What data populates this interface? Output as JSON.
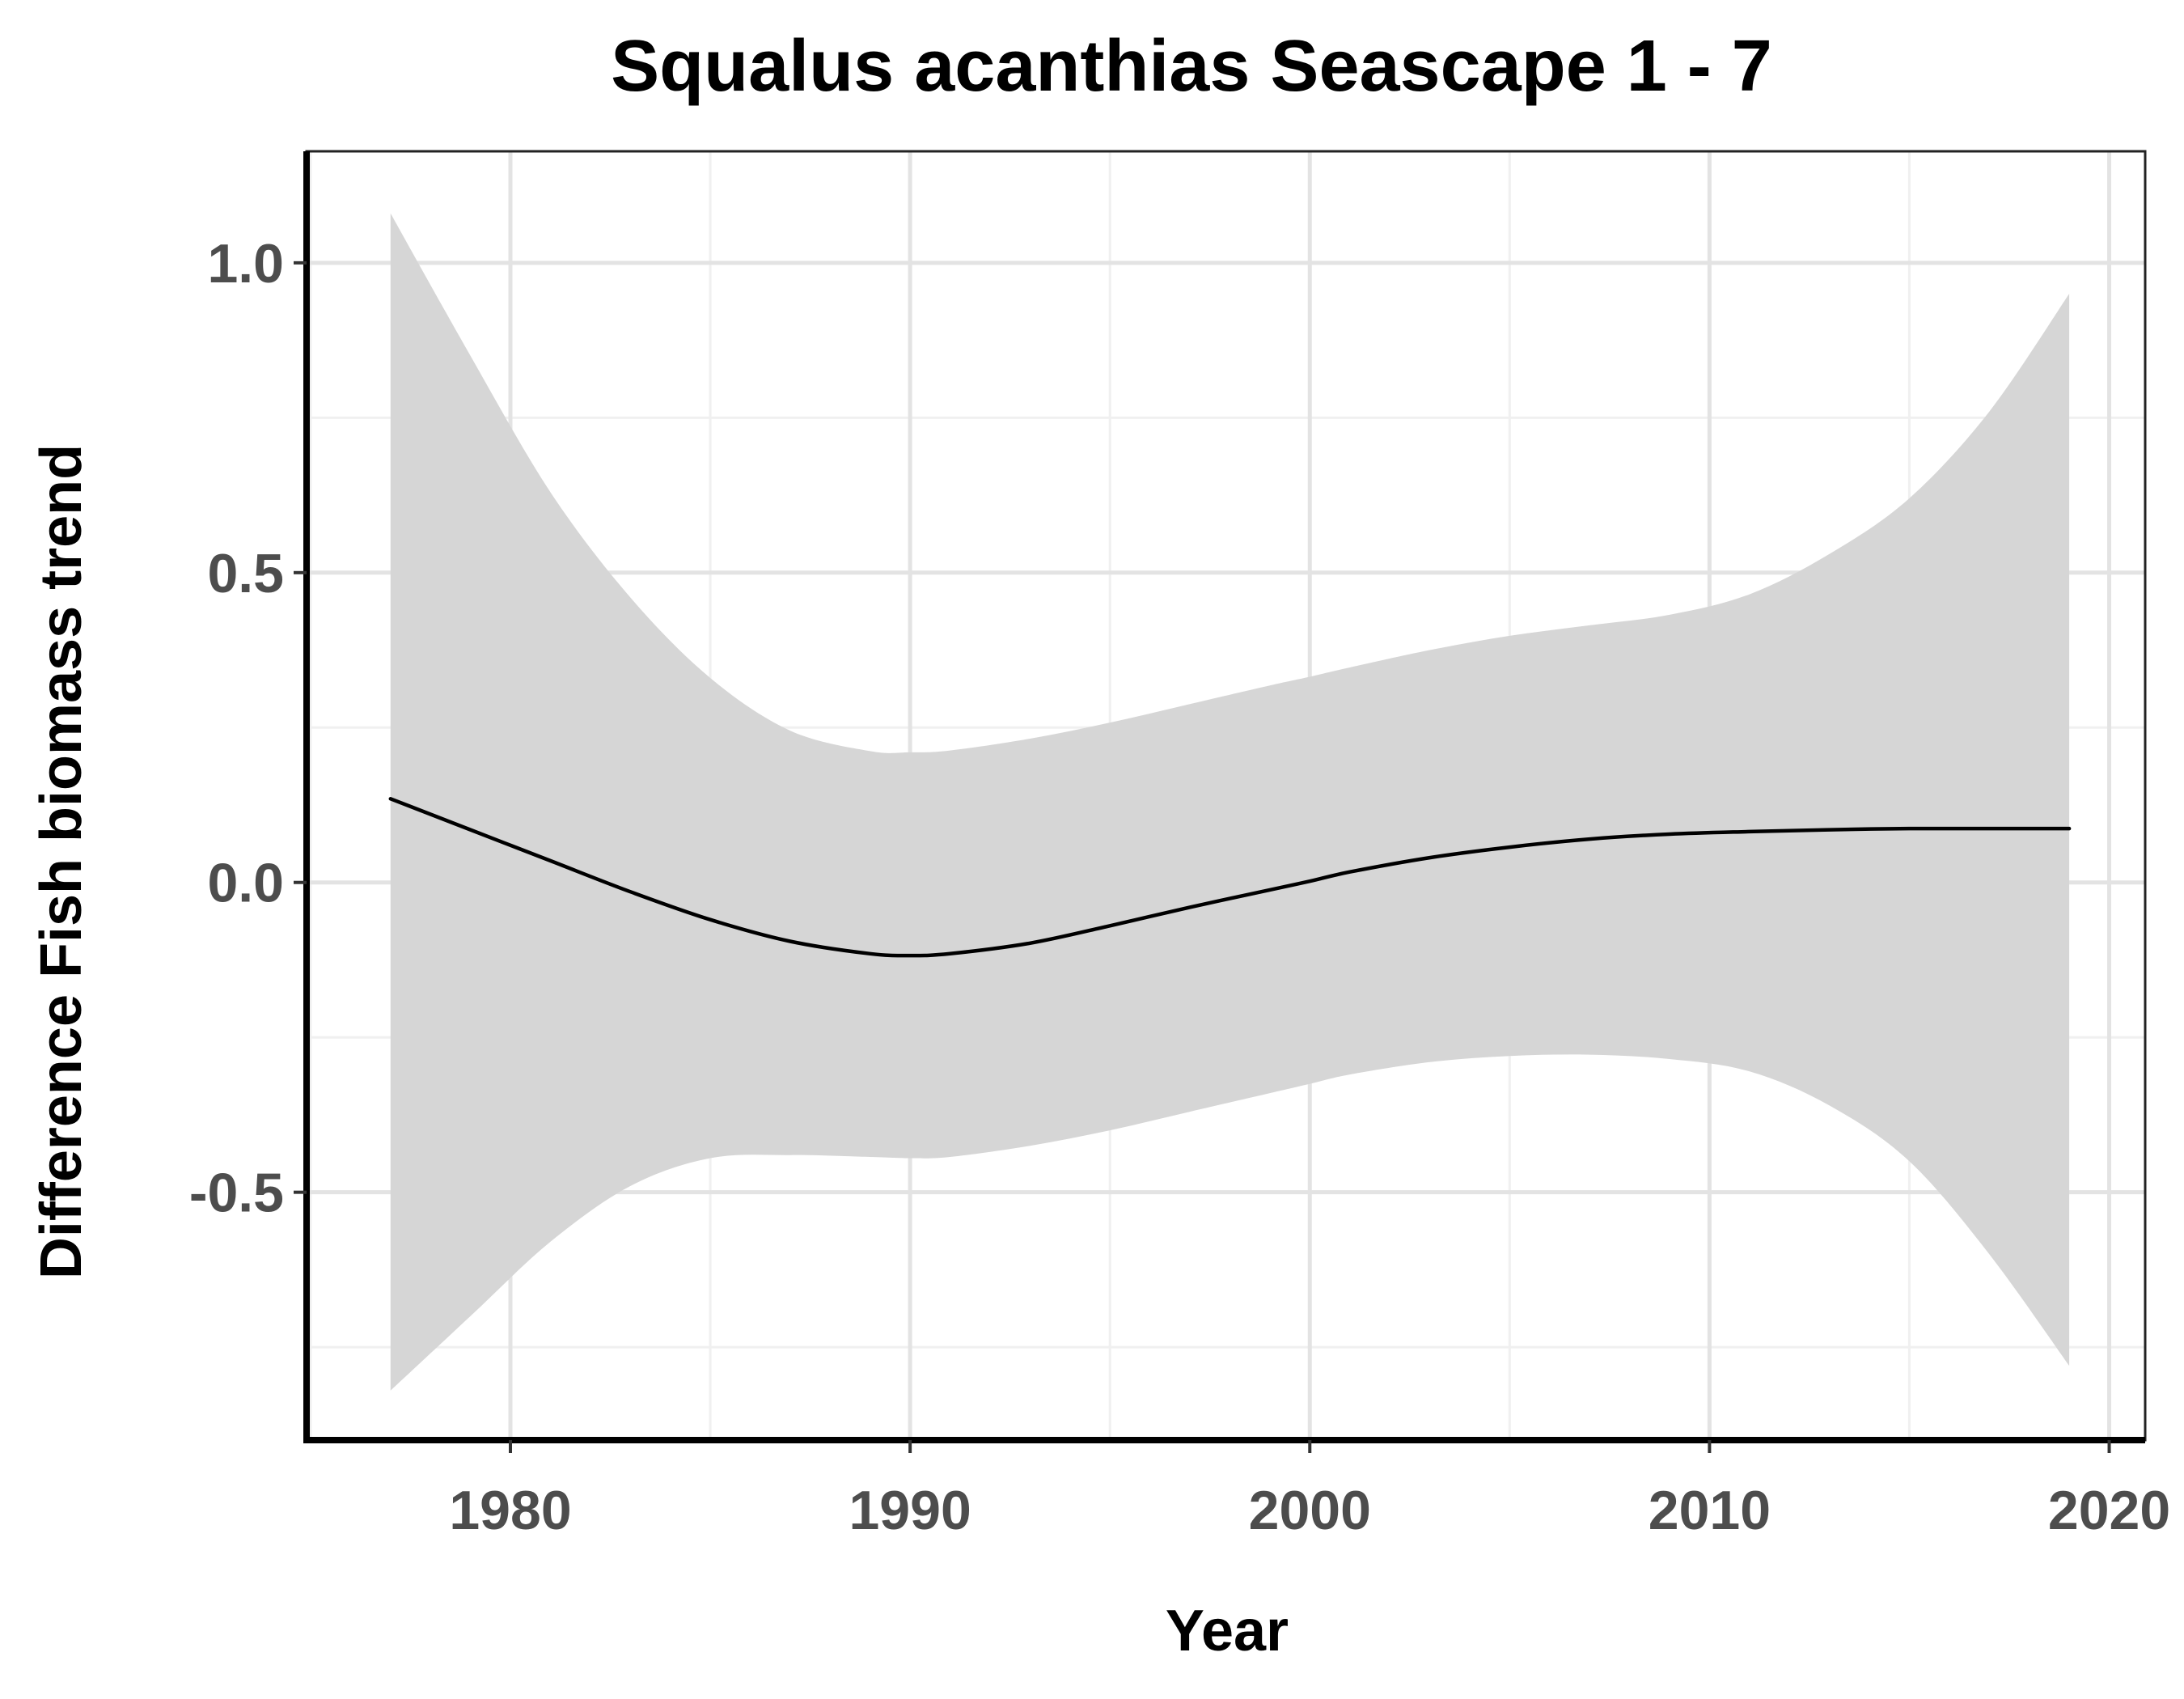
{
  "chart_data": {
    "type": "line",
    "title": "Squalus acanthias Seascape 1 - 7",
    "xlabel": "Year",
    "ylabel": "Difference Fish biomass trend",
    "xlim": [
      1974.9,
      2020.9
    ],
    "ylim": [
      -0.9,
      1.18
    ],
    "x_ticks": [
      1980,
      1990,
      2000,
      2010,
      2020
    ],
    "x_tick_labels": [
      "1980",
      "1990",
      "2000",
      "2010",
      "2020"
    ],
    "y_ticks": [
      -0.5,
      0.0,
      0.5,
      1.0
    ],
    "y_tick_labels": [
      "-0.5",
      "0.0",
      "0.5",
      "1.0"
    ],
    "grid": true,
    "legend": "none",
    "colors": {
      "line": "#000000",
      "band": "#d6d6d6"
    },
    "series": [
      {
        "x": [
          1977,
          1979,
          1981,
          1983,
          1985,
          1987,
          1989,
          1990,
          1991,
          1993,
          1995,
          1997,
          1999,
          2000,
          2001,
          2003,
          2005,
          2007,
          2009,
          2011,
          2013,
          2015,
          2017,
          2019
        ],
        "y": [
          0.135,
          0.085,
          0.035,
          -0.015,
          -0.06,
          -0.095,
          -0.115,
          -0.118,
          -0.115,
          -0.098,
          -0.07,
          -0.04,
          -0.012,
          0.002,
          0.017,
          0.04,
          0.057,
          0.07,
          0.078,
          0.082,
          0.085,
          0.087,
          0.087,
          0.087
        ],
        "lower": [
          -0.82,
          -0.7,
          -0.58,
          -0.49,
          -0.445,
          -0.44,
          -0.443,
          -0.445,
          -0.443,
          -0.425,
          -0.4,
          -0.37,
          -0.34,
          -0.325,
          -0.31,
          -0.29,
          -0.28,
          -0.278,
          -0.285,
          -0.305,
          -0.36,
          -0.45,
          -0.6,
          -0.78
        ],
        "upper": [
          1.08,
          0.85,
          0.63,
          0.46,
          0.33,
          0.245,
          0.212,
          0.21,
          0.213,
          0.232,
          0.258,
          0.288,
          0.318,
          0.332,
          0.347,
          0.375,
          0.398,
          0.415,
          0.432,
          0.465,
          0.53,
          0.62,
          0.76,
          0.95
        ]
      }
    ]
  }
}
